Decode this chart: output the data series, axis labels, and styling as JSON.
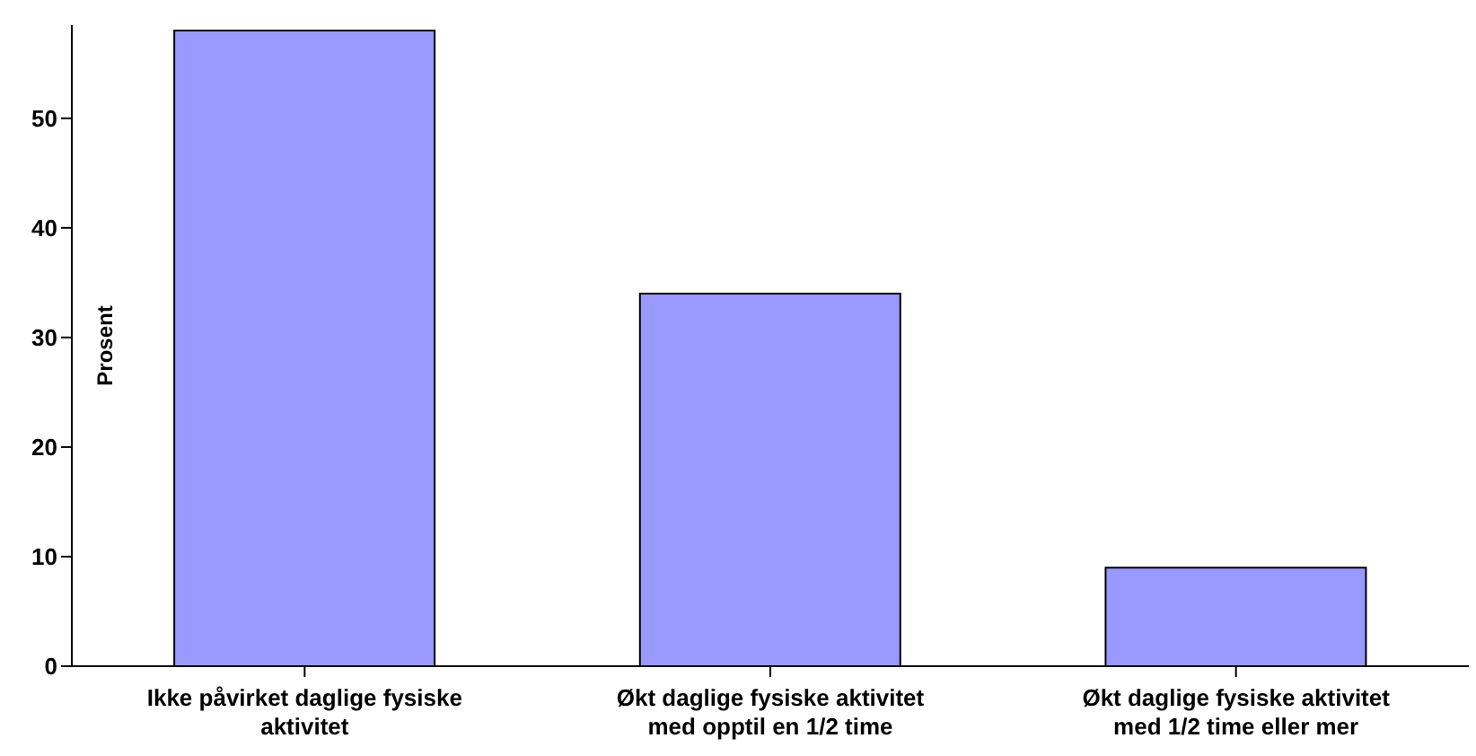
{
  "chart_data": {
    "type": "bar",
    "ylabel": "Prosent",
    "categories": [
      "Ikke påvirket daglige fysiske aktivitet",
      "Økt daglige fysiske aktivitet med opptil en 1/2 time",
      "Økt daglige fysiske aktivitet med 1/2 time eller mer"
    ],
    "values": [
      58,
      34,
      9
    ],
    "color": "#9999ff",
    "ylim": [
      0,
      58.5
    ],
    "yticks": [
      0,
      10,
      20,
      30,
      40,
      50
    ],
    "grid": false
  }
}
